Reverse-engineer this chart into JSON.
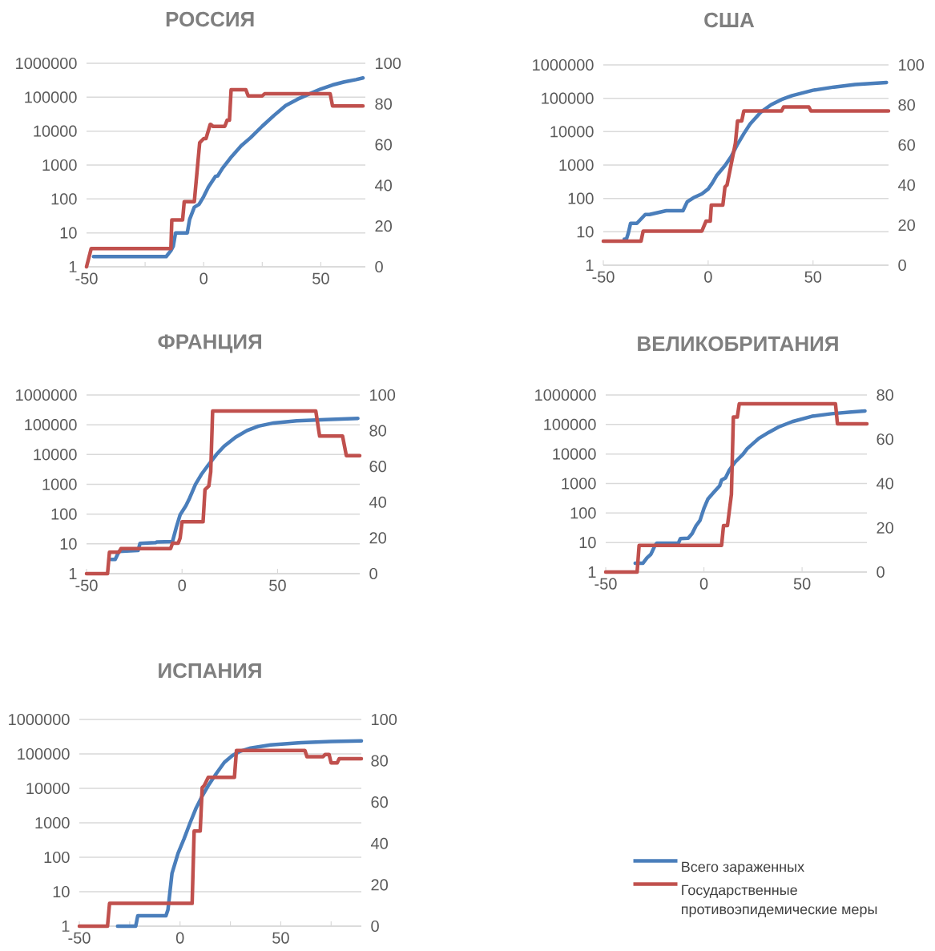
{
  "chart_data": [
    {
      "type": "line",
      "title": "РОССИЯ",
      "log": "y",
      "grid": "y",
      "xlim": [
        -50,
        69
      ],
      "xticks": [
        -50,
        {
          "value": -25,
          "label": null
        },
        0,
        {
          "value": 25,
          "label": null
        },
        50
      ],
      "ylim": [
        1,
        1000000
      ],
      "yticks": [
        1,
        10,
        100,
        1000,
        10000,
        100000,
        1000000
      ],
      "y2lim": [
        0,
        100
      ],
      "y2ticks": [
        0,
        20,
        40,
        60,
        80,
        100
      ],
      "series": [
        {
          "color": "#4a7ebb",
          "x": [
            -47,
            -16,
            -14,
            -13,
            -12,
            -7,
            -6,
            -4,
            -2,
            0,
            2,
            5,
            6,
            8,
            12,
            16,
            20,
            25,
            30,
            35,
            40,
            45,
            50,
            55,
            60,
            65,
            68
          ],
          "values": [
            2,
            2,
            3,
            4,
            10,
            10,
            25,
            57,
            69,
            118,
            225,
            463,
            480,
            800,
            1800,
            3700,
            6400,
            14000,
            29000,
            57000,
            87000,
            124000,
            175000,
            230000,
            282000,
            330000,
            370000
          ]
        },
        {
          "color": "#c0504d",
          "axis": "y2",
          "x": [
            -50,
            -48,
            -14,
            -13.6,
            -9,
            -8.3,
            -4,
            -1.7,
            0,
            1,
            2.8,
            3,
            4,
            9,
            10,
            11,
            11.7,
            18,
            19,
            25,
            26,
            54,
            55,
            68
          ],
          "values": [
            0,
            9,
            9,
            23,
            23,
            32,
            32,
            61,
            63,
            63,
            70,
            70,
            69,
            69,
            72,
            72,
            87,
            87,
            84,
            84,
            85,
            85,
            79,
            79
          ]
        }
      ]
    },
    {
      "type": "line",
      "title": "США",
      "log": "y",
      "grid": "y",
      "xlim": [
        -50,
        86
      ],
      "xticks": [
        -50,
        0,
        50
      ],
      "ylim": [
        1,
        1000000
      ],
      "yticks": [
        1,
        10,
        100,
        1000,
        10000,
        100000,
        1000000
      ],
      "y2lim": [
        0,
        100
      ],
      "y2ticks": [
        0,
        20,
        40,
        60,
        80,
        100
      ],
      "series": [
        {
          "color": "#4a7ebb",
          "x": [
            -40,
            -39,
            -38,
            -37,
            -34,
            -30,
            -28,
            -20,
            -12,
            -10,
            -7,
            -3,
            0,
            2,
            4,
            8,
            11,
            14,
            17,
            20,
            25,
            30,
            35,
            40,
            50,
            60,
            70,
            85
          ],
          "values": [
            6,
            6,
            9.5,
            18,
            18,
            33,
            33,
            43,
            43,
            79,
            105,
            137,
            192,
            290,
            480,
            960,
            1800,
            4200,
            8700,
            17000,
            38000,
            64000,
            92000,
            120000,
            174000,
            217000,
            257000,
            298000
          ]
        },
        {
          "color": "#c0504d",
          "axis": "y2",
          "x": [
            -50,
            -32,
            -31,
            -3,
            -1,
            1,
            1.5,
            7,
            8,
            9,
            13,
            14,
            16,
            17,
            35,
            36,
            48,
            49,
            86
          ],
          "values": [
            12,
            12,
            17,
            17,
            22,
            22,
            30,
            30,
            39,
            40,
            61,
            72,
            72,
            77,
            77,
            79,
            79,
            77,
            77
          ]
        }
      ]
    },
    {
      "type": "line",
      "title": "ФРАНЦИЯ",
      "log": "y",
      "grid": "y",
      "xlim": [
        -50,
        93
      ],
      "xticks": [
        -50,
        0,
        50
      ],
      "ylim": [
        1,
        1000000
      ],
      "yticks": [
        1,
        10,
        100,
        1000,
        10000,
        100000,
        1000000
      ],
      "y2lim": [
        0,
        100
      ],
      "y2ticks": [
        0,
        20,
        40,
        60,
        80,
        100
      ],
      "series": [
        {
          "color": "#4a7ebb",
          "x": [
            -37,
            -35,
            -33,
            -23,
            -22,
            -14,
            -13,
            -5,
            -3,
            -1,
            2,
            4,
            7,
            10,
            14,
            18,
            22,
            28,
            34,
            40,
            48,
            60,
            75,
            92
          ],
          "values": [
            3,
            3,
            5.6,
            6,
            10.4,
            11,
            11.6,
            12,
            36,
            95,
            190,
            350,
            990,
            2100,
            4700,
            10000,
            19000,
            38000,
            64000,
            90000,
            115000,
            135000,
            148000,
            163000
          ]
        },
        {
          "color": "#c0504d",
          "axis": "y2",
          "x": [
            -50,
            -39,
            -38,
            -33,
            -32,
            -6,
            -5,
            -2,
            -1,
            0,
            11,
            12,
            14,
            15,
            16,
            70,
            72,
            84,
            86,
            93
          ],
          "values": [
            0,
            0,
            12,
            12,
            14,
            14,
            17,
            17,
            20,
            29,
            29,
            47,
            49,
            57,
            91,
            91,
            77,
            77,
            66,
            66
          ]
        }
      ]
    },
    {
      "type": "line",
      "title": "ВЕЛИКОБРИТАНИЯ",
      "log": "y",
      "grid": "y",
      "xlim": [
        -50,
        83
      ],
      "xticks": [
        -50,
        0,
        50
      ],
      "ylim": [
        1,
        1000000
      ],
      "yticks": [
        1,
        10,
        100,
        1000,
        10000,
        100000,
        1000000
      ],
      "y2lim": [
        0,
        80
      ],
      "y2ticks": [
        0,
        20,
        40,
        60,
        80
      ],
      "series": [
        {
          "color": "#4a7ebb",
          "x": [
            -35,
            -31,
            -29,
            -27,
            -25,
            -24,
            -13,
            -12,
            -8,
            -6,
            -4,
            -2,
            0,
            2,
            5,
            8,
            9,
            11,
            13,
            16,
            20,
            22,
            28,
            33,
            38,
            45,
            55,
            65,
            75,
            82
          ],
          "values": [
            2,
            2,
            3,
            4,
            7.7,
            9.5,
            9.5,
            13.5,
            14,
            20,
            37,
            56,
            142,
            295,
            500,
            830,
            1300,
            1550,
            2900,
            5400,
            10000,
            15000,
            34000,
            54000,
            82000,
            125000,
            190000,
            232000,
            265000,
            288000
          ]
        },
        {
          "color": "#c0504d",
          "axis": "y2",
          "x": [
            -50,
            -34,
            -33,
            9,
            10,
            12,
            14,
            15,
            17,
            18,
            67,
            68,
            83
          ],
          "values": [
            0,
            0,
            12,
            12,
            21,
            21,
            35,
            70,
            70,
            76,
            76,
            67,
            67
          ]
        }
      ]
    },
    {
      "type": "line",
      "title": "ИСПАНИЯ",
      "log": "y",
      "grid": "y",
      "legend": "right",
      "xlim": [
        -50,
        90
      ],
      "xticks": [
        -50,
        {
          "value": -25,
          "label": null
        },
        0,
        {
          "value": 25,
          "label": null
        },
        50,
        {
          "value": 75,
          "label": null
        }
      ],
      "ylim": [
        1,
        1000000
      ],
      "yticks": [
        1,
        10,
        100,
        1000,
        10000,
        100000,
        1000000
      ],
      "y2lim": [
        0,
        100
      ],
      "y2ticks": [
        0,
        20,
        40,
        60,
        80,
        100
      ],
      "series": [
        {
          "name": "Всего зараженных",
          "color": "#4a7ebb",
          "x": [
            -31,
            -22,
            -21,
            -7,
            -6,
            -5,
            -4,
            -1,
            2,
            5,
            8,
            11,
            14,
            18,
            22,
            26,
            30,
            35,
            45,
            60,
            75,
            90
          ],
          "values": [
            1,
            1,
            2,
            2,
            3,
            10,
            34,
            130,
            345,
            1000,
            2700,
            6000,
            12000,
            27000,
            57000,
            90000,
            120000,
            148000,
            183000,
            212000,
            230000,
            240000
          ]
        },
        {
          "name": "Государственные противоэпидемические меры",
          "color": "#c0504d",
          "axis": "y2",
          "x": [
            -50,
            -36,
            -35,
            6,
            7,
            10,
            11,
            12,
            14,
            27,
            28,
            62,
            63,
            71,
            72,
            74,
            75,
            78,
            79,
            90
          ],
          "values": [
            0,
            0,
            11,
            11,
            46,
            46,
            67,
            68,
            72,
            72,
            85,
            85,
            82,
            82,
            83,
            83,
            79,
            79,
            81,
            81
          ]
        }
      ]
    }
  ]
}
